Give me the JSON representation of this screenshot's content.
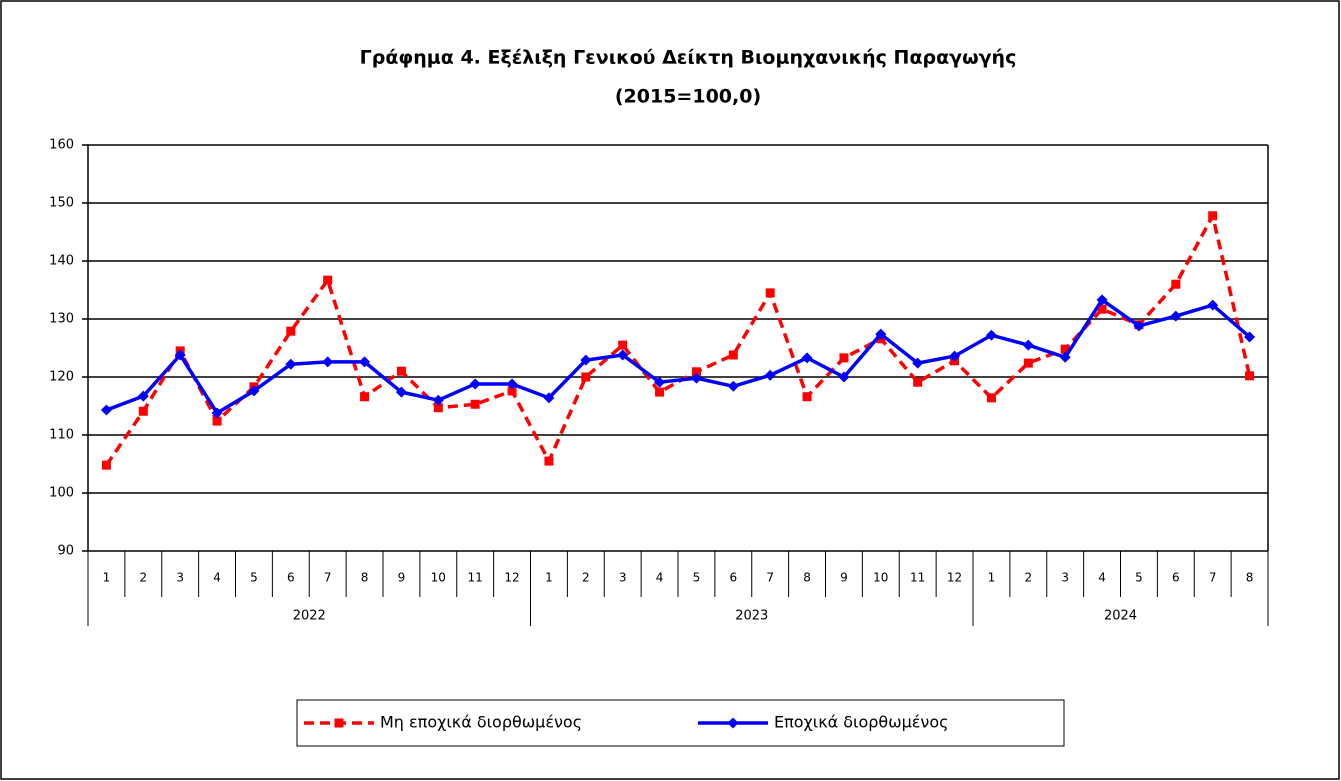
{
  "chart_data": {
    "type": "line",
    "title": "Γράφημα 4. Εξέλιξη Γενικού Δείκτη Βιομηχανικής Παραγωγής",
    "subtitle": "(2015=100,0)",
    "categories": [
      "1",
      "2",
      "3",
      "4",
      "5",
      "6",
      "7",
      "8",
      "9",
      "10",
      "11",
      "12",
      "1",
      "2",
      "3",
      "4",
      "5",
      "6",
      "7",
      "8",
      "9",
      "10",
      "11",
      "12",
      "1",
      "2",
      "3",
      "4",
      "5",
      "6",
      "7",
      "8"
    ],
    "groups": [
      "2022",
      "2023",
      "2024"
    ],
    "series": [
      {
        "name": "Μη εποχικά διορθωμένος",
        "color": "#ff0000",
        "line_style": "dashed",
        "marker": "square",
        "values": [
          104.8,
          114.1,
          124.5,
          112.4,
          118.3,
          127.9,
          136.7,
          116.6,
          121.0,
          114.7,
          115.3,
          117.6,
          105.5,
          120.0,
          125.5,
          117.4,
          120.9,
          123.8,
          134.5,
          116.6,
          123.3,
          126.6,
          119.1,
          122.8,
          116.4,
          122.4,
          124.8,
          131.7,
          129.0,
          136.0,
          147.8,
          120.2
        ]
      },
      {
        "name": "Εποχικά διορθωμένος",
        "color": "#0000ff",
        "line_style": "solid",
        "marker": "diamond",
        "values": [
          114.3,
          116.7,
          123.8,
          113.8,
          117.6,
          122.2,
          122.6,
          122.6,
          117.4,
          116.0,
          118.8,
          118.8,
          116.4,
          122.9,
          123.8,
          119.1,
          119.8,
          118.4,
          120.3,
          123.3,
          120.0,
          127.4,
          122.4,
          123.6,
          127.2,
          125.5,
          123.4,
          133.3,
          128.8,
          130.5,
          132.4,
          126.9
        ]
      }
    ],
    "ylim": [
      90,
      160
    ],
    "yticks": [
      90,
      100,
      110,
      120,
      130,
      140,
      150,
      160
    ],
    "grid": true
  }
}
